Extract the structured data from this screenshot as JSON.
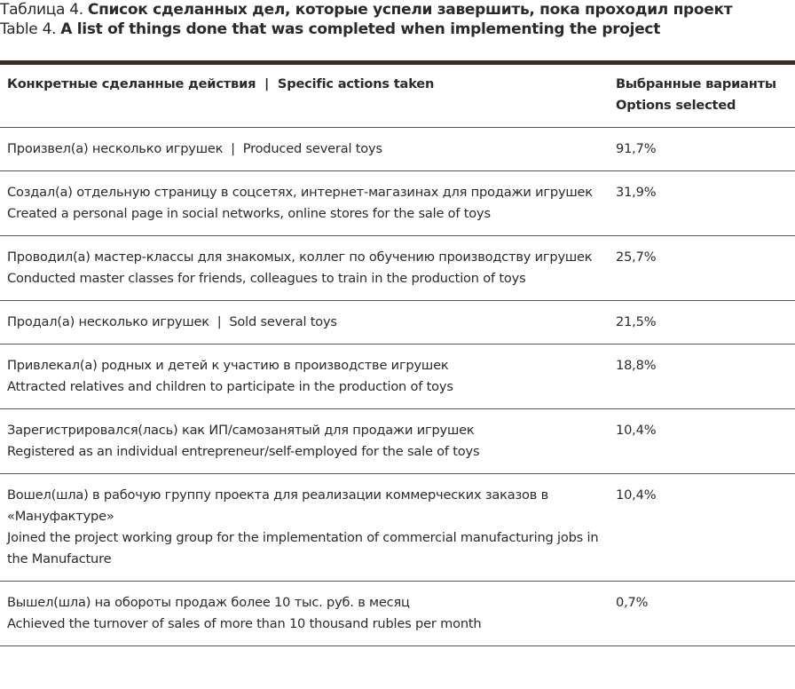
{
  "caption": {
    "label_ru": "Таблица 4.",
    "title_ru": "Список сделанных дел, которые успели завершить, пока проходил проект",
    "label_en": "Table 4.",
    "title_en": "A list of things done that was completed when implementing the project"
  },
  "table": {
    "header": {
      "action": "Конкретные сделанные действия  |  Specific actions taken",
      "share": [
        "Выбранные варианты",
        "Options selected"
      ]
    },
    "rows": [
      {
        "action": [
          "Произвел(а) несколько игрушек  |  Produced several toys"
        ],
        "share": "91,7%"
      },
      {
        "action": [
          "Создал(а) отдельную страницу в соцсетях, интернет-магазинах для продажи игрушек",
          "Created a personal page in social networks, online stores for the sale of toys"
        ],
        "share": "31,9%"
      },
      {
        "action": [
          "Проводил(а) мастер-классы для знакомых, коллег по обучению производству игрушек",
          "Conducted master classes for friends, colleagues to train in the production of toys"
        ],
        "share": "25,7%"
      },
      {
        "action": [
          "Продал(а) несколько игрушек  |  Sold several toys"
        ],
        "share": "21,5%"
      },
      {
        "action": [
          "Привлекал(а) родных и детей к участию в производстве игрушек",
          "Attracted relatives and children to participate in the production of toys"
        ],
        "share": "18,8%"
      },
      {
        "action": [
          "Зарегистрировался(лась) как ИП/самозанятый для продажи игрушек",
          "Registered as an individual entrepreneur/self-employed for the sale of toys"
        ],
        "share": "10,4%"
      },
      {
        "action": [
          "Вошел(шла) в рабочую группу проекта для реализации коммерческих заказов в «Мануфактуре»",
          "Joined the project working group for the implementation of commercial manufacturing jobs in the Manufacture"
        ],
        "share": "10,4%"
      },
      {
        "action": [
          "Вышел(шла) на обороты продаж более 10 тыс. руб. в месяц",
          "Achieved the turnover of sales of more than 10 thousand rubles per month"
        ],
        "share": "0,7%"
      }
    ]
  }
}
